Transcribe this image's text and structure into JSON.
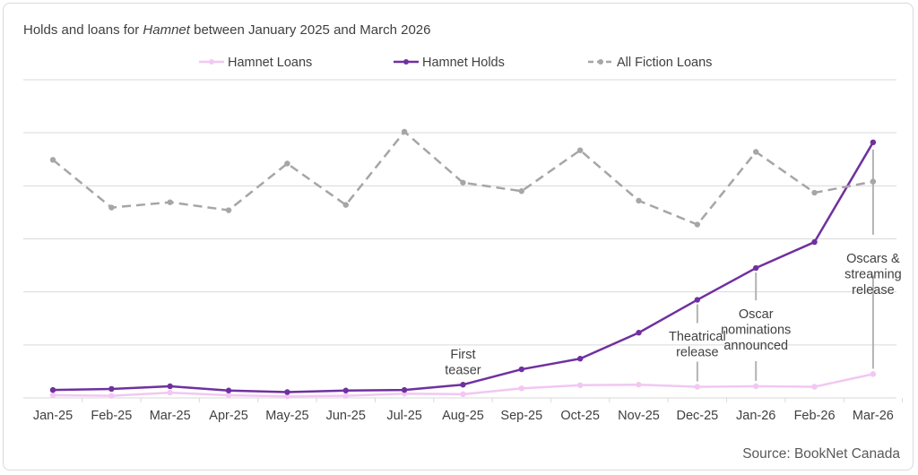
{
  "chart_data": {
    "type": "line",
    "title_prefix": "Holds and loans for ",
    "title_italic": "Hamnet",
    "title_suffix": " between January 2025 and March 2026",
    "xlabel": "",
    "ylabel": "",
    "ylim": [
      0,
      6
    ],
    "grid": true,
    "y_tick_labels_shown": false,
    "legend_position": "top",
    "categories": [
      "Jan-25",
      "Feb-25",
      "Mar-25",
      "Apr-25",
      "May-25",
      "Jun-25",
      "Jul-25",
      "Aug-25",
      "Sep-25",
      "Oct-25",
      "Nov-25",
      "Dec-25",
      "Jan-26",
      "Feb-26",
      "Mar-26"
    ],
    "series": [
      {
        "name": "Hamnet Loans",
        "color": "#f2c7f2",
        "style": "solid",
        "values": [
          0.05,
          0.04,
          0.1,
          0.05,
          0.03,
          0.04,
          0.08,
          0.07,
          0.18,
          0.24,
          0.25,
          0.21,
          0.22,
          0.21,
          0.45
        ]
      },
      {
        "name": "Hamnet Holds",
        "color": "#7030a0",
        "style": "solid",
        "values": [
          0.15,
          0.17,
          0.22,
          0.14,
          0.11,
          0.14,
          0.15,
          0.25,
          0.54,
          0.74,
          1.23,
          1.85,
          2.45,
          2.94,
          4.82
        ]
      },
      {
        "name": "All Fiction Loans",
        "color": "#a6a6a6",
        "style": "dashed",
        "values": [
          4.49,
          3.59,
          3.69,
          3.54,
          4.42,
          3.64,
          5.02,
          4.06,
          3.9,
          4.67,
          3.72,
          3.27,
          4.64,
          3.87,
          4.08
        ]
      }
    ],
    "annotations": [
      {
        "lines": [
          "First",
          "teaser"
        ],
        "category": "Aug-25",
        "has_leader": false
      },
      {
        "lines": [
          "Theatrical",
          "release"
        ],
        "category": "Dec-25",
        "has_leader": true
      },
      {
        "lines": [
          "Oscar",
          "nominations",
          "announced"
        ],
        "category": "Jan-26",
        "has_leader": true
      },
      {
        "lines": [
          "Oscars &",
          "streaming",
          "release"
        ],
        "category": "Mar-26",
        "has_leader": true
      }
    ]
  },
  "source": "Source: BookNet Canada",
  "colors": {
    "grid": "#d9d9d9",
    "leader": "#b3b3b3",
    "text": "#404040"
  }
}
